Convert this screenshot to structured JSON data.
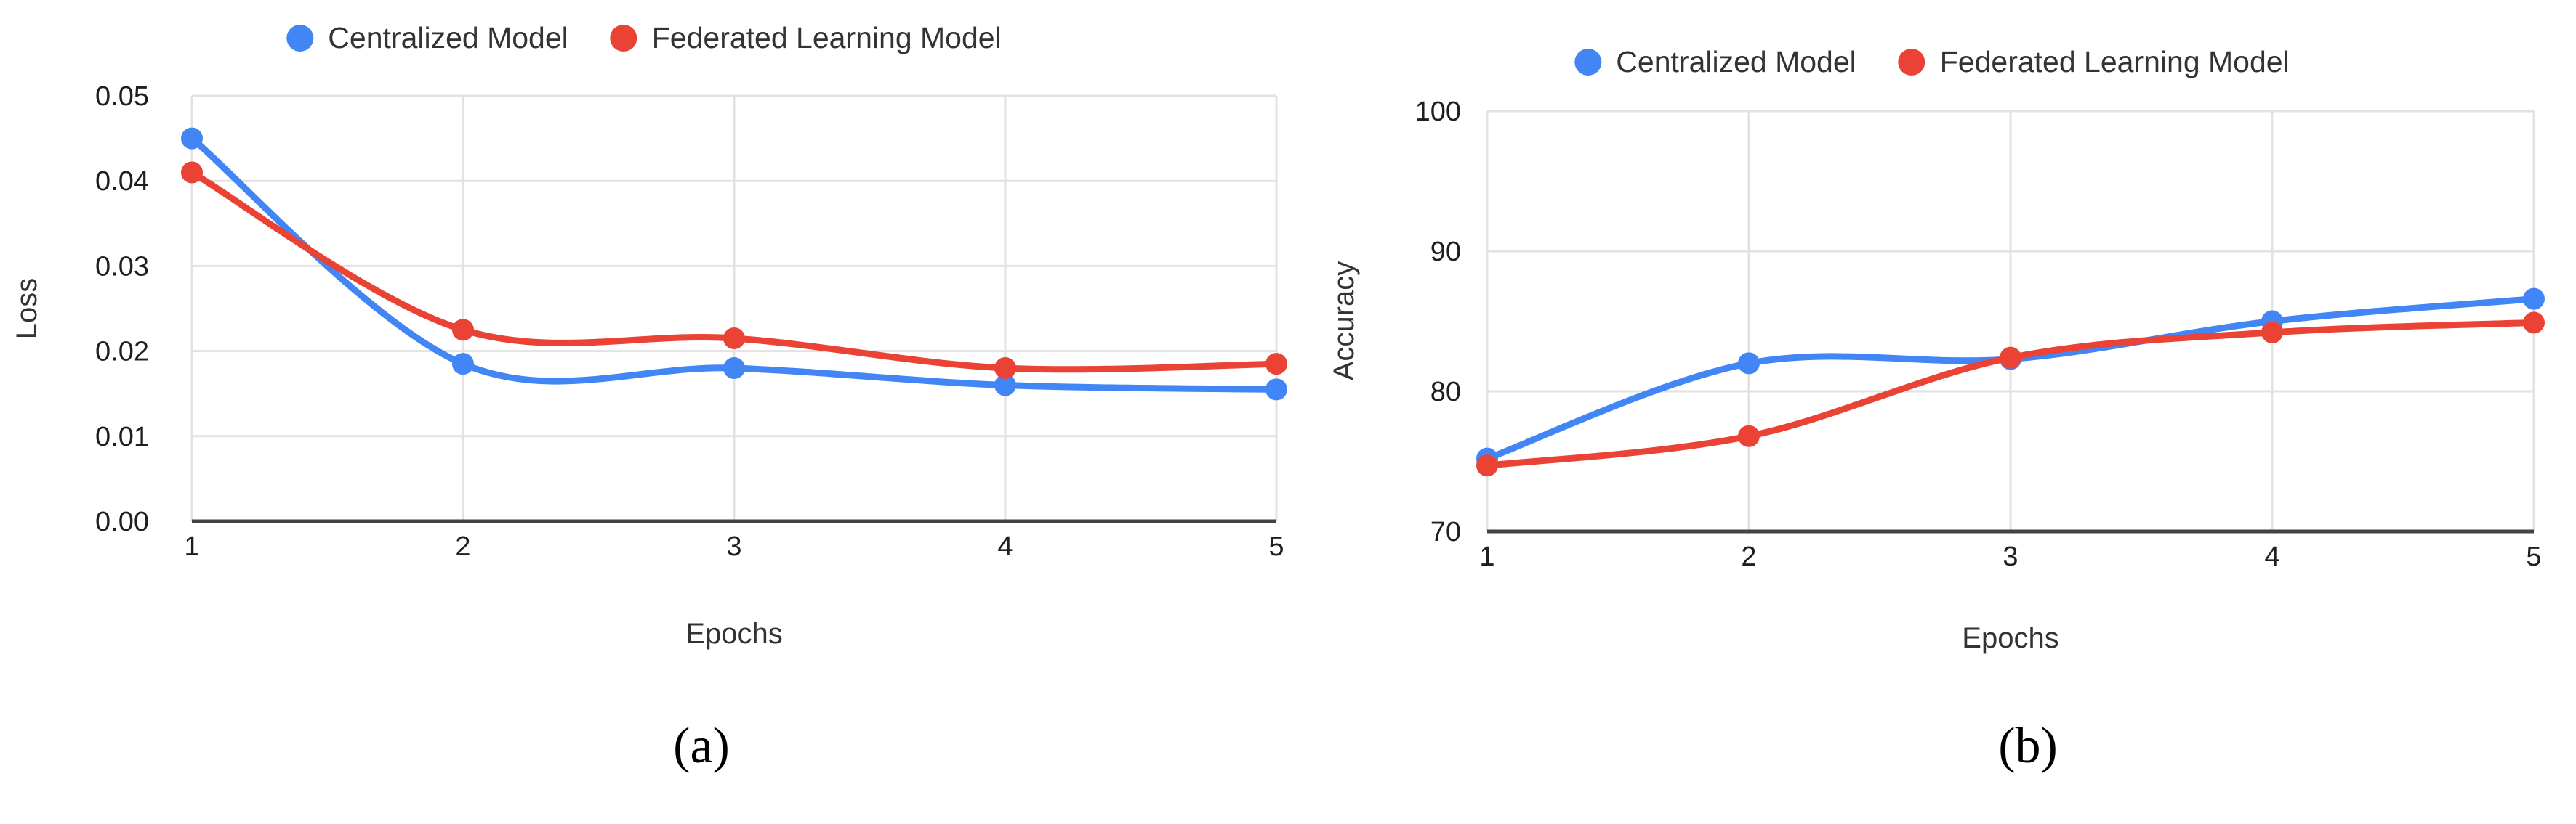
{
  "legend": {
    "items": [
      {
        "label": "Centralized Model",
        "color": "#4285F4"
      },
      {
        "label": "Federated Learning Model",
        "color": "#EA4335"
      }
    ]
  },
  "chart_data": [
    {
      "type": "line",
      "smooth": true,
      "grid": true,
      "legend_position": "top",
      "caption": "(a)",
      "xlabel": "Epochs",
      "ylabel": "Loss",
      "x": [
        1,
        2,
        3,
        4,
        5
      ],
      "xlim": [
        1,
        5
      ],
      "ylim": [
        0,
        0.05
      ],
      "xticks": [
        1,
        2,
        3,
        4,
        5
      ],
      "xtick_labels": [
        "1",
        "2",
        "3",
        "4",
        "5"
      ],
      "yticks": [
        0,
        0.01,
        0.02,
        0.03,
        0.04,
        0.05
      ],
      "ytick_labels": [
        "0.00",
        "0.01",
        "0.02",
        "0.03",
        "0.04",
        "0.05"
      ],
      "series": [
        {
          "name": "Centralized Model",
          "color": "#4285F4",
          "values": [
            0.045,
            0.0185,
            0.018,
            0.016,
            0.0155
          ]
        },
        {
          "name": "Federated Learning Model",
          "color": "#EA4335",
          "values": [
            0.041,
            0.0225,
            0.0215,
            0.018,
            0.0185
          ]
        }
      ]
    },
    {
      "type": "line",
      "smooth": true,
      "grid": true,
      "legend_position": "top",
      "caption": "(b)",
      "xlabel": "Epochs",
      "ylabel": "Accuracy",
      "x": [
        1,
        2,
        3,
        4,
        5
      ],
      "xlim": [
        1,
        5
      ],
      "ylim": [
        70,
        100
      ],
      "xticks": [
        1,
        2,
        3,
        4,
        5
      ],
      "xtick_labels": [
        "1",
        "2",
        "3",
        "4",
        "5"
      ],
      "yticks": [
        70,
        80,
        90,
        100
      ],
      "ytick_labels": [
        "70",
        "80",
        "90",
        "100"
      ],
      "series": [
        {
          "name": "Centralized Model",
          "color": "#4285F4",
          "values": [
            75.2,
            82.0,
            82.3,
            85.0,
            86.6
          ]
        },
        {
          "name": "Federated Learning Model",
          "color": "#EA4335",
          "values": [
            74.7,
            76.8,
            82.4,
            84.2,
            84.9
          ]
        }
      ]
    }
  ]
}
